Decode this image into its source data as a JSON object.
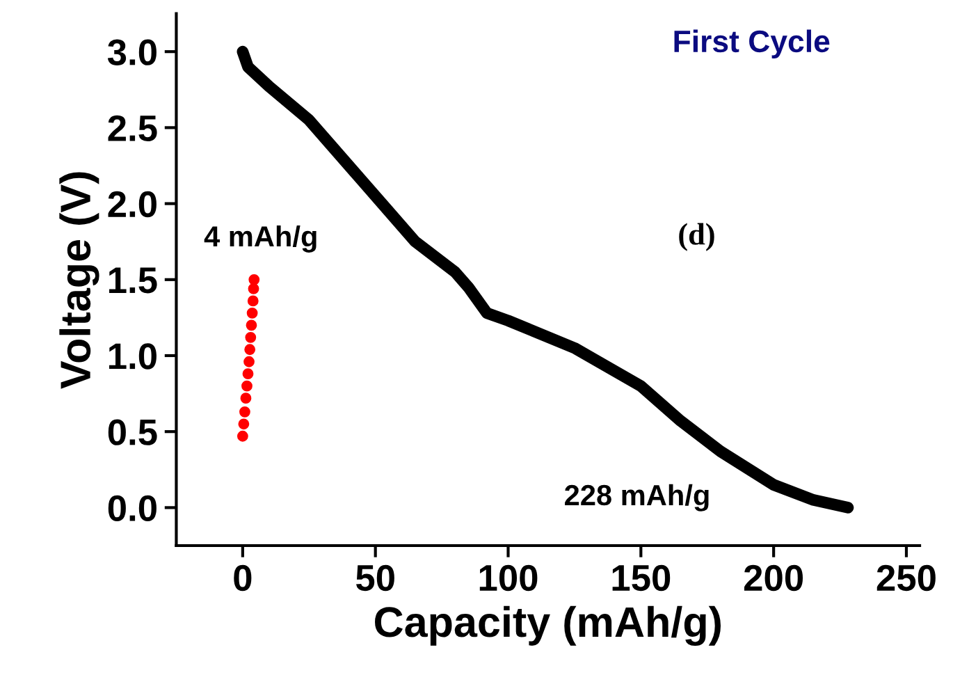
{
  "chart_data": {
    "type": "line",
    "title": "First Cycle",
    "xlabel": "Capacity (mAh/g)",
    "ylabel": "Voltage (V)",
    "series": [
      {
        "type": "line",
        "color": "#000000",
        "marker": "none",
        "line_style": "solid",
        "x": [
          0,
          2,
          10,
          25,
          40,
          55,
          65,
          80,
          85,
          92,
          100,
          125,
          150,
          165,
          180,
          200,
          215,
          228
        ],
        "values": [
          3.0,
          2.9,
          2.77,
          2.55,
          2.25,
          1.95,
          1.75,
          1.55,
          1.45,
          1.28,
          1.23,
          1.05,
          0.8,
          0.57,
          0.37,
          0.15,
          0.05,
          0.0
        ]
      },
      {
        "type": "scatter",
        "color": "#ff0000",
        "marker": "circle",
        "x": [
          0,
          0.4,
          0.8,
          1.2,
          1.6,
          2,
          2.4,
          2.7,
          3,
          3.3,
          3.6,
          3.9,
          4.1,
          4.3
        ],
        "values": [
          0.47,
          0.55,
          0.63,
          0.72,
          0.8,
          0.88,
          0.96,
          1.04,
          1.12,
          1.2,
          1.28,
          1.36,
          1.44,
          1.5
        ]
      }
    ],
    "annotations": [
      {
        "text": "4 mAh/g",
        "x": 4,
        "y": 1.5
      },
      "228 mAh/g",
      "(d)"
    ],
    "xlim": [
      -25,
      255
    ],
    "ylim": [
      -0.25,
      3.25
    ],
    "xticks": [
      0,
      50,
      100,
      150,
      200,
      250
    ],
    "yticks": [
      {
        "value": 0,
        "label": "0.0"
      },
      0.5,
      {
        "value": 1,
        "label": "1.0"
      },
      1.5,
      {
        "value": 2,
        "label": "2.0"
      },
      2.5,
      {
        "value": 3,
        "label": "3.0"
      }
    ],
    "grid": false,
    "legend": false
  }
}
